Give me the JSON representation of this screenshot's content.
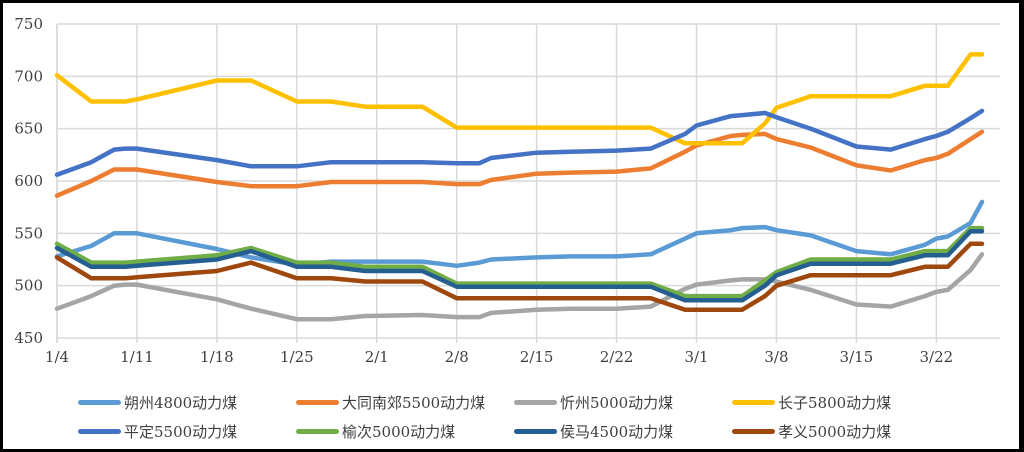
{
  "chart_data": {
    "type": "line",
    "title": "",
    "xlabel": "",
    "ylabel": "",
    "ylim": [
      450,
      750
    ],
    "yticks": [
      450,
      500,
      550,
      600,
      650,
      700,
      750
    ],
    "xtick_labels": [
      "1/4",
      "1/11",
      "1/18",
      "1/25",
      "2/1",
      "2/8",
      "2/15",
      "2/22",
      "3/1",
      "3/8",
      "3/15",
      "3/22"
    ],
    "grid": true,
    "legend_position": "bottom",
    "x_day_offsets": [
      0,
      3,
      5,
      6,
      7,
      14,
      17,
      21,
      24,
      27,
      32,
      35,
      37,
      38,
      42,
      45,
      49,
      52,
      55,
      56,
      59,
      60,
      62,
      63,
      66,
      70,
      73,
      76,
      77,
      78,
      80,
      81
    ],
    "x_dates": [
      "1/4",
      "1/7",
      "1/9",
      "1/10",
      "1/11",
      "1/18",
      "1/21",
      "1/25",
      "1/28",
      "1/31",
      "2/5",
      "2/8",
      "2/10",
      "2/11",
      "2/15",
      "2/18",
      "2/22",
      "2/25",
      "2/28",
      "3/1",
      "3/4",
      "3/5",
      "3/7",
      "3/8",
      "3/11",
      "3/15",
      "3/18",
      "3/21",
      "3/22",
      "3/23",
      "3/25",
      "3/26"
    ],
    "series": [
      {
        "name": "朔州4800动力煤",
        "color": "#5B9BD5",
        "values": [
          528,
          538,
          550,
          550,
          550,
          535,
          527,
          520,
          523,
          523,
          523,
          519,
          522,
          525,
          527,
          528,
          528,
          530,
          545,
          550,
          553,
          555,
          556,
          553,
          548,
          533,
          530,
          539,
          545,
          547,
          560,
          580
        ]
      },
      {
        "name": "大同南郊5500动力煤",
        "color": "#ED7D31",
        "values": [
          586,
          600,
          611,
          611,
          611,
          599,
          595,
          595,
          599,
          599,
          599,
          597,
          597,
          601,
          607,
          608,
          609,
          612,
          628,
          634,
          643,
          644,
          645,
          640,
          632,
          615,
          610,
          620,
          622,
          626,
          640,
          647
        ]
      },
      {
        "name": "忻州5000动力煤",
        "color": "#A5A5A5",
        "values": [
          478,
          490,
          500,
          501,
          501,
          487,
          478,
          468,
          468,
          471,
          472,
          470,
          470,
          474,
          477,
          478,
          478,
          480,
          497,
          501,
          505,
          506,
          506,
          504,
          496,
          482,
          480,
          490,
          494,
          496,
          515,
          530
        ]
      },
      {
        "name": "长子5800动力煤",
        "color": "#FFC000",
        "values": [
          701,
          676,
          676,
          676,
          678,
          696,
          696,
          676,
          676,
          671,
          671,
          651,
          651,
          651,
          651,
          651,
          651,
          651,
          636,
          636,
          636,
          636,
          655,
          670,
          681,
          681,
          681,
          691,
          691,
          691,
          721,
          721
        ]
      },
      {
        "name": "平定5500动力煤",
        "color": "#4472C4",
        "values": [
          606,
          618,
          630,
          631,
          631,
          620,
          614,
          614,
          618,
          618,
          618,
          617,
          617,
          622,
          627,
          628,
          629,
          631,
          645,
          653,
          662,
          663,
          665,
          661,
          650,
          633,
          630,
          640,
          643,
          647,
          660,
          667
        ]
      },
      {
        "name": "榆次5000动力煤",
        "color": "#70AD47",
        "values": [
          540,
          522,
          522,
          522,
          523,
          529,
          536,
          522,
          522,
          518,
          518,
          502,
          502,
          502,
          502,
          502,
          502,
          502,
          490,
          490,
          490,
          490,
          505,
          513,
          525,
          525,
          525,
          533,
          533,
          533,
          555,
          555
        ]
      },
      {
        "name": "侯马4500动力煤",
        "color": "#255E91",
        "values": [
          536,
          518,
          518,
          518,
          519,
          525,
          533,
          518,
          518,
          514,
          514,
          499,
          499,
          499,
          499,
          499,
          499,
          499,
          486,
          486,
          486,
          486,
          500,
          510,
          521,
          521,
          521,
          529,
          529,
          529,
          552,
          552
        ]
      },
      {
        "name": "孝义5000动力煤",
        "color": "#9E480E",
        "values": [
          527,
          507,
          507,
          507,
          508,
          514,
          522,
          507,
          507,
          504,
          504,
          488,
          488,
          488,
          488,
          488,
          488,
          488,
          477,
          477,
          477,
          477,
          490,
          500,
          510,
          510,
          510,
          518,
          518,
          518,
          540,
          540
        ]
      }
    ]
  },
  "legend": {
    "rows": [
      [
        "朔州4800动力煤",
        "大同南郊5500动力煤",
        "忻州5000动力煤",
        "长子5800动力煤"
      ],
      [
        "平定5500动力煤",
        "榆次5000动力煤",
        "侯马4500动力煤",
        "孝义5000动力煤"
      ]
    ]
  },
  "colors": {
    "grid": "#D9D9D9",
    "axis_text": "#404040",
    "border": "#000000",
    "background": "#FFFFFF"
  }
}
